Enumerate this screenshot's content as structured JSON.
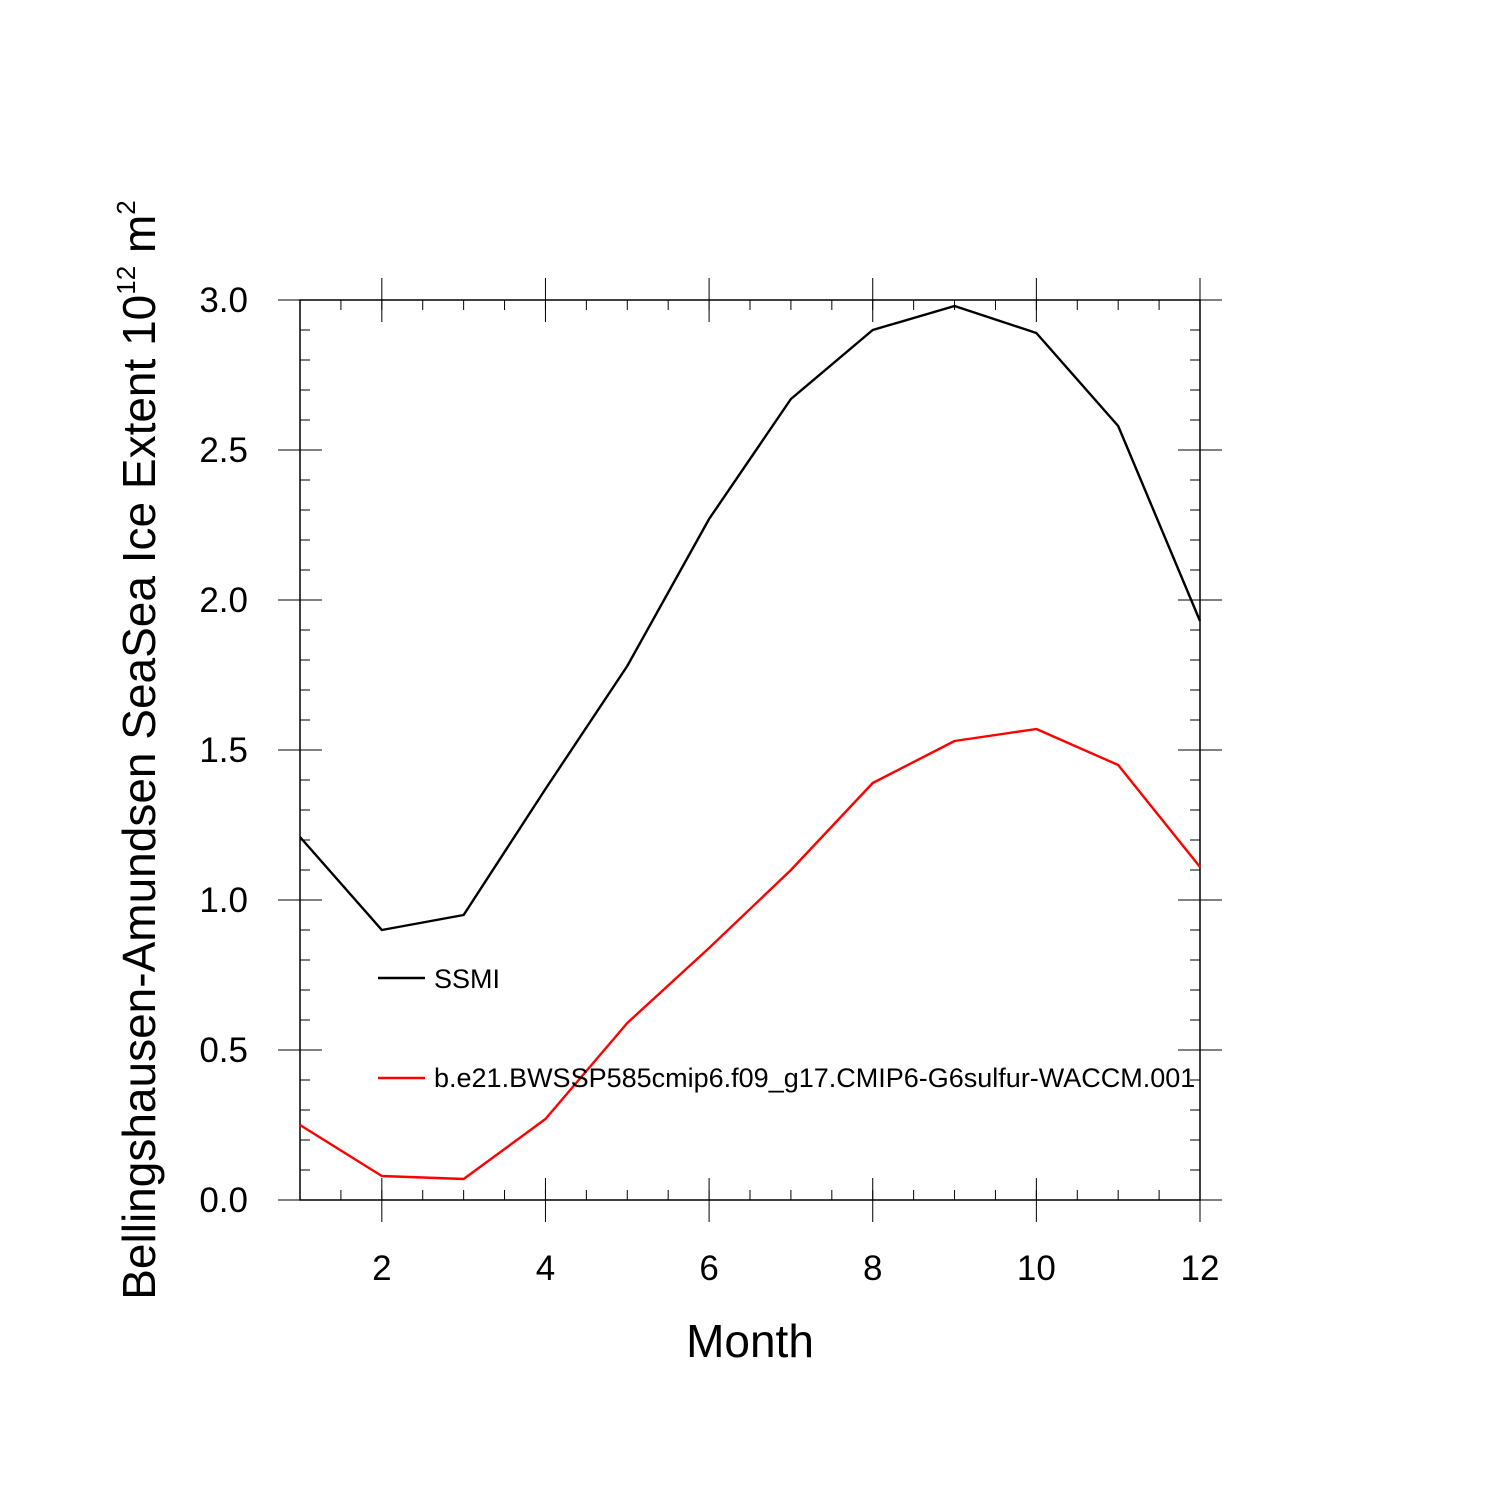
{
  "chart_data": {
    "type": "line",
    "title": "",
    "xlabel": "Month",
    "ylabel_main": "Bellingshausen-Amundsen SeaSea Ice Extent 10",
    "ylabel_exponent": "12",
    "ylabel_unit": " m",
    "ylabel_unit_exponent": "2",
    "xlim": [
      1,
      12
    ],
    "ylim": [
      0.0,
      3.0
    ],
    "x_ticks": [
      2,
      4,
      6,
      8,
      10,
      12
    ],
    "x_tick_labels": [
      "2",
      "4",
      "6",
      "8",
      "10",
      "12"
    ],
    "y_ticks": [
      0.0,
      0.5,
      1.0,
      1.5,
      2.0,
      2.5,
      3.0
    ],
    "y_tick_labels": [
      "0.0",
      "0.5",
      "1.0",
      "1.5",
      "2.0",
      "2.5",
      "3.0"
    ],
    "x": [
      1,
      2,
      3,
      4,
      5,
      6,
      7,
      8,
      9,
      10,
      11,
      12
    ],
    "series": [
      {
        "name": "SSMI",
        "color": "#000000",
        "values": [
          1.21,
          0.9,
          0.95,
          1.37,
          1.78,
          2.27,
          2.67,
          2.9,
          2.98,
          2.89,
          2.58,
          1.93
        ]
      },
      {
        "name": "b.e21.BWSSP585cmip6.f09_g17.CMIP6-G6sulfur-WACCM.001",
        "color": "#ff0000",
        "values": [
          0.25,
          0.08,
          0.07,
          0.27,
          0.59,
          0.84,
          1.1,
          1.39,
          1.53,
          1.57,
          1.45,
          1.11
        ]
      }
    ],
    "legend_position": "inside-lower-left",
    "grid": false
  }
}
